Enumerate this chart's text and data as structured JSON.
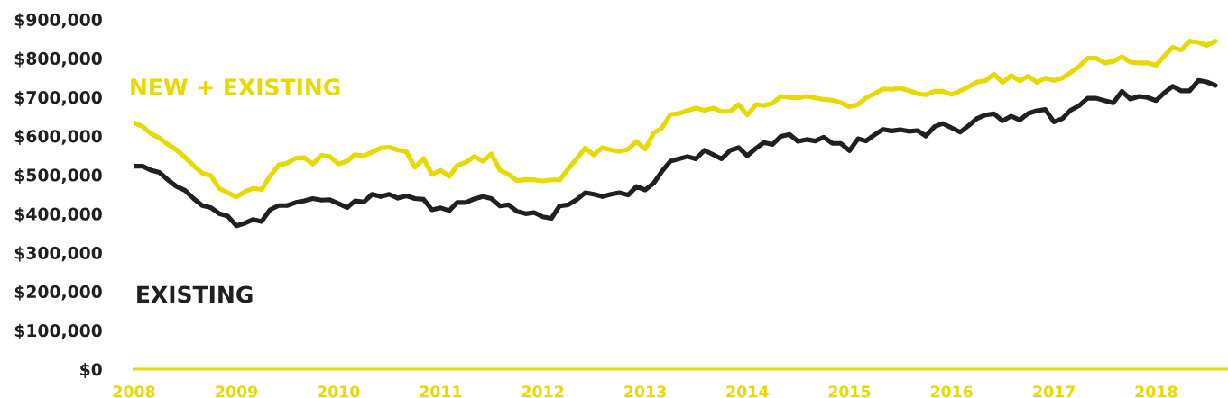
{
  "chart_data": {
    "type": "line",
    "x": [
      "2008-01",
      "2008-02",
      "2008-03",
      "2008-04",
      "2008-05",
      "2008-06",
      "2008-07",
      "2008-08",
      "2008-09",
      "2008-10",
      "2008-11",
      "2008-12",
      "2009-01",
      "2009-02",
      "2009-03",
      "2009-04",
      "2009-05",
      "2009-06",
      "2009-07",
      "2009-08",
      "2009-09",
      "2009-10",
      "2009-11",
      "2009-12",
      "2010-01",
      "2010-02",
      "2010-03",
      "2010-04",
      "2010-05",
      "2010-06",
      "2010-07",
      "2010-08",
      "2010-09",
      "2010-10",
      "2010-11",
      "2010-12",
      "2011-01",
      "2011-02",
      "2011-03",
      "2011-04",
      "2011-05",
      "2011-06",
      "2011-07",
      "2011-08",
      "2011-09",
      "2011-10",
      "2011-11",
      "2011-12",
      "2012-01",
      "2012-02",
      "2012-03",
      "2012-04",
      "2012-05",
      "2012-06",
      "2012-07",
      "2012-08",
      "2012-09",
      "2012-10",
      "2012-11",
      "2012-12",
      "2013-01",
      "2013-02",
      "2013-03",
      "2013-04",
      "2013-05",
      "2013-06",
      "2013-07",
      "2013-08",
      "2013-09",
      "2013-10",
      "2013-11",
      "2013-12",
      "2014-01",
      "2014-02",
      "2014-03",
      "2014-04",
      "2014-05",
      "2014-06",
      "2014-07",
      "2014-08",
      "2014-09",
      "2014-10",
      "2014-11",
      "2014-12",
      "2015-01",
      "2015-02",
      "2015-03",
      "2015-04",
      "2015-05",
      "2015-06",
      "2015-07",
      "2015-08",
      "2015-09",
      "2015-10",
      "2015-11",
      "2015-12",
      "2016-01",
      "2016-02",
      "2016-03",
      "2016-04",
      "2016-05",
      "2016-06",
      "2016-07",
      "2016-08",
      "2016-09",
      "2016-10",
      "2016-11",
      "2016-12",
      "2017-01",
      "2017-02",
      "2017-03",
      "2017-04",
      "2017-05",
      "2017-06",
      "2017-07",
      "2017-08",
      "2017-09",
      "2017-10",
      "2017-11",
      "2017-12",
      "2018-01",
      "2018-02",
      "2018-03",
      "2018-04",
      "2018-05",
      "2018-06",
      "2018-07",
      "2018-08"
    ],
    "series": [
      {
        "name": "NEW + EXISTING",
        "color": "#e6da00",
        "values": [
          634000,
          624000,
          606000,
          595000,
          578000,
          564000,
          545000,
          524000,
          504000,
          498000,
          465000,
          454000,
          443000,
          457000,
          465000,
          462000,
          496000,
          525000,
          530000,
          543000,
          544000,
          528000,
          550000,
          547000,
          528000,
          535000,
          552000,
          549000,
          558000,
          569000,
          571000,
          564000,
          559000,
          519000,
          542000,
          501000,
          512000,
          496000,
          524000,
          532000,
          547000,
          535000,
          554000,
          512000,
          501000,
          485000,
          488000,
          487000,
          484000,
          487000,
          487000,
          515000,
          541000,
          569000,
          551000,
          570000,
          564000,
          560000,
          566000,
          586000,
          566000,
          608000,
          620000,
          655000,
          658000,
          665000,
          672000,
          666000,
          672000,
          663000,
          663000,
          681000,
          654000,
          681000,
          678000,
          684000,
          702000,
          699000,
          698000,
          702000,
          698000,
          694000,
          692000,
          686000,
          675000,
          681000,
          698000,
          709000,
          721000,
          720000,
          723000,
          717000,
          709000,
          706000,
          715000,
          715000,
          707000,
          716000,
          726000,
          739000,
          742000,
          759000,
          738000,
          755000,
          742000,
          754000,
          738000,
          749000,
          743000,
          749000,
          763000,
          779000,
          800000,
          800000,
          788000,
          792000,
          804000,
          790000,
          788000,
          788000,
          782000,
          807000,
          828000,
          821000,
          844000,
          841000,
          833000,
          844000
        ]
      },
      {
        "name": "EXISTING",
        "color": "#231f20",
        "values": [
          522000,
          522000,
          512000,
          506000,
          487000,
          470000,
          460000,
          439000,
          421000,
          416000,
          400000,
          394000,
          369000,
          376000,
          385000,
          380000,
          410000,
          421000,
          421000,
          429000,
          433000,
          439000,
          435000,
          436000,
          426000,
          416000,
          433000,
          430000,
          450000,
          444000,
          450000,
          440000,
          446000,
          439000,
          437000,
          410000,
          415000,
          408000,
          429000,
          429000,
          438000,
          444000,
          439000,
          420000,
          423000,
          406000,
          400000,
          403000,
          392000,
          388000,
          420000,
          423000,
          436000,
          454000,
          450000,
          444000,
          450000,
          454000,
          448000,
          470000,
          461000,
          479000,
          508000,
          535000,
          541000,
          547000,
          541000,
          563000,
          552000,
          541000,
          563000,
          570000,
          549000,
          568000,
          583000,
          578000,
          599000,
          604000,
          586000,
          591000,
          587000,
          597000,
          581000,
          581000,
          562000,
          593000,
          587000,
          603000,
          617000,
          613000,
          616000,
          612000,
          614000,
          600000,
          624000,
          632000,
          621000,
          610000,
          626000,
          645000,
          654000,
          657000,
          639000,
          651000,
          641000,
          658000,
          665000,
          668000,
          636000,
          645000,
          666000,
          678000,
          697000,
          697000,
          691000,
          685000,
          715000,
          695000,
          702000,
          699000,
          691000,
          712000,
          728000,
          716000,
          716000,
          743000,
          739000,
          730000
        ]
      }
    ],
    "xlim": [
      "2008-01-01",
      "2018-09-15"
    ],
    "xticks": [
      "2008",
      "2009",
      "2010",
      "2011",
      "2012",
      "2013",
      "2014",
      "2015",
      "2016",
      "2017",
      "2018"
    ],
    "ylim": [
      0,
      900000
    ],
    "yticks": [
      {
        "value": 0,
        "label": "$0"
      },
      {
        "value": 100000,
        "label": "$100,000"
      },
      {
        "value": 200000,
        "label": "$200,000"
      },
      {
        "value": 300000,
        "label": "$300,000"
      },
      {
        "value": 400000,
        "label": "$400,000"
      },
      {
        "value": 500000,
        "label": "$500,000"
      },
      {
        "value": 600000,
        "label": "$600,000"
      },
      {
        "value": 700000,
        "label": "$700,000"
      },
      {
        "value": 800000,
        "label": "$800,000"
      },
      {
        "value": 900000,
        "label": "$900,000"
      }
    ]
  }
}
